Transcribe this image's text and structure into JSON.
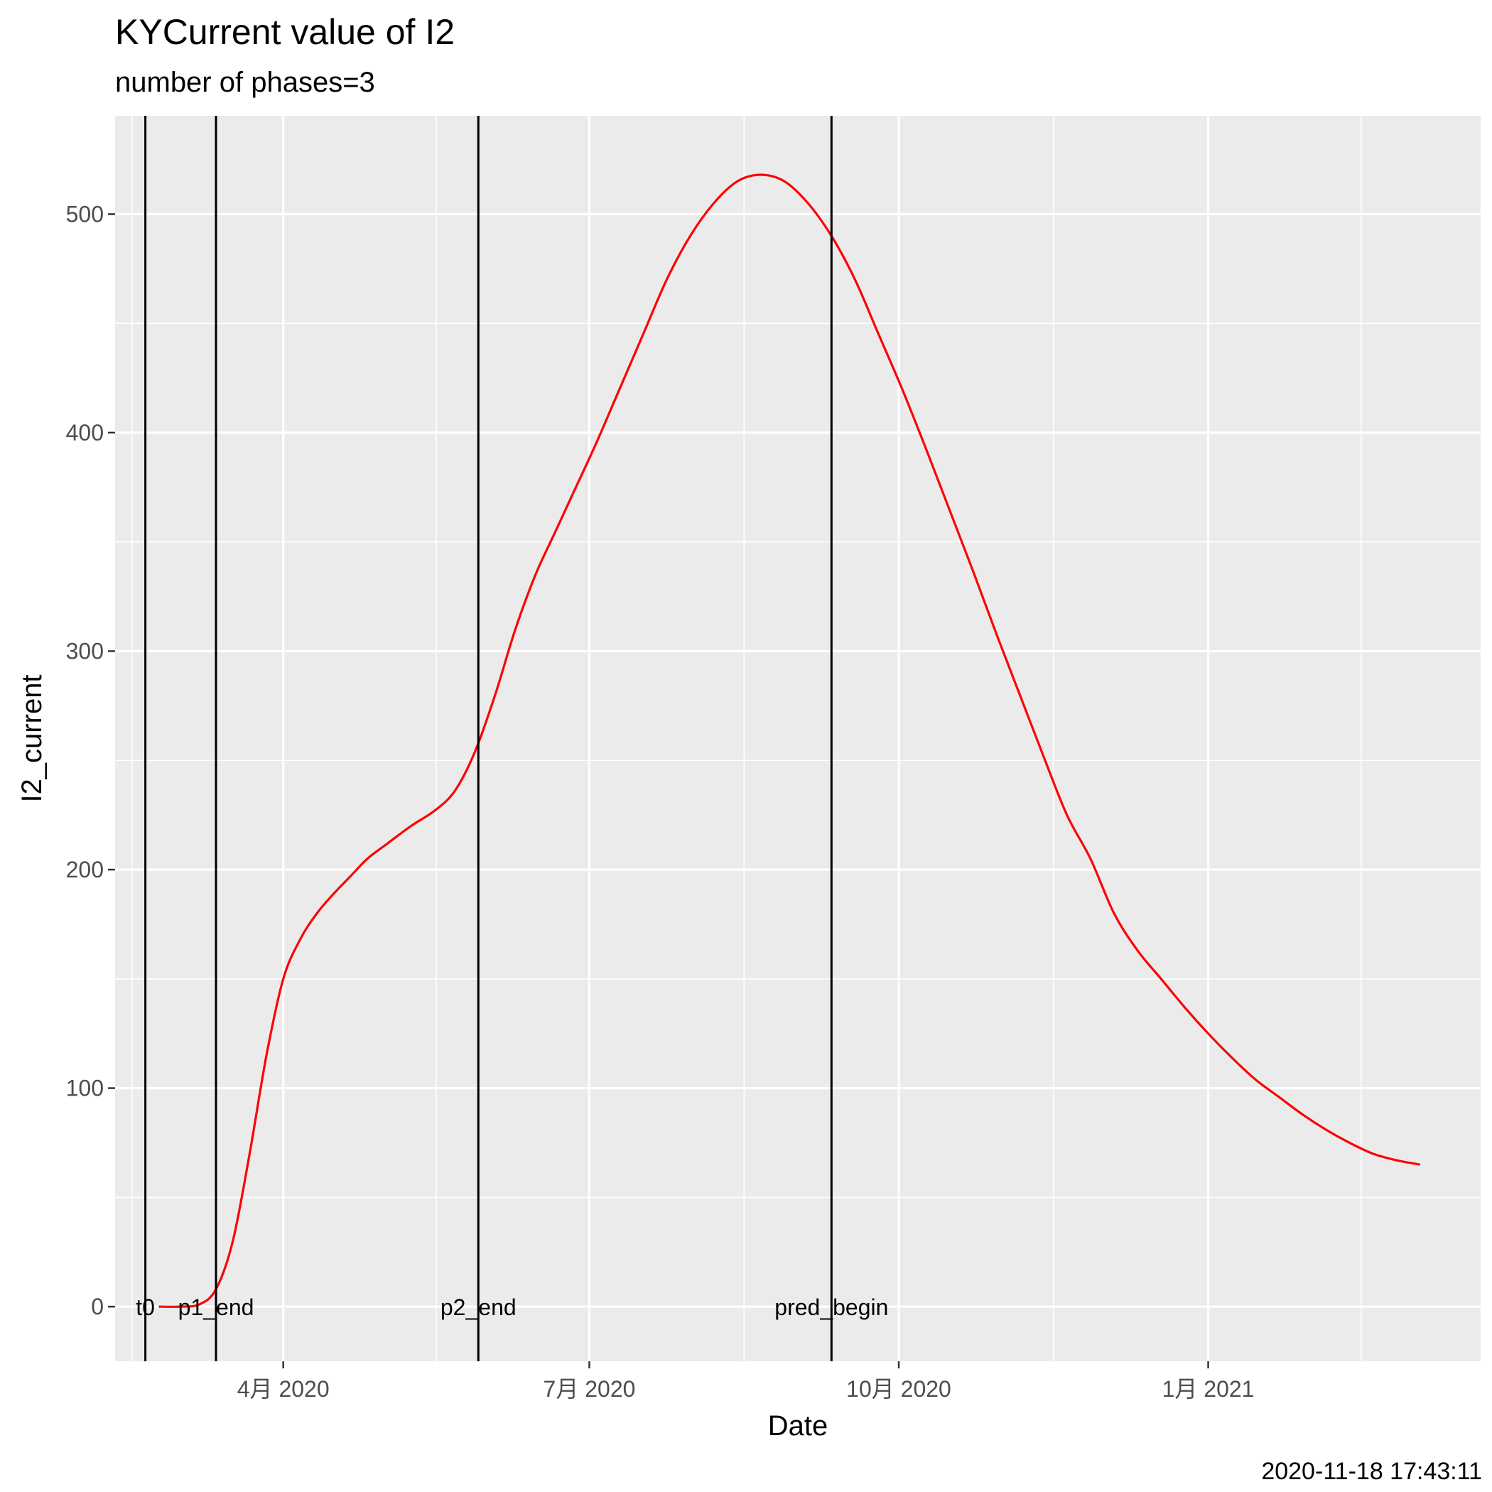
{
  "chart_data": {
    "type": "line",
    "title": "KYCurrent value of I2",
    "subtitle": "number of phases=3",
    "xlabel": "Date",
    "ylabel": "I2_current",
    "caption": "2020-11-18 17:43:11",
    "x_range": [
      "2020-02-11",
      "2021-03-23"
    ],
    "ylim": [
      -25,
      545
    ],
    "y_ticks": [
      0,
      100,
      200,
      300,
      400,
      500
    ],
    "x_ticks": [
      {
        "date": "2020-04-01",
        "label": "4月 2020"
      },
      {
        "date": "2020-07-01",
        "label": "7月 2020"
      },
      {
        "date": "2020-10-01",
        "label": "10月 2020"
      },
      {
        "date": "2021-01-01",
        "label": "1月 2021"
      }
    ],
    "grid": true,
    "legend": "none",
    "line_color": "#ff0000",
    "vlines": [
      {
        "date": "2020-02-20",
        "label": "t0"
      },
      {
        "date": "2020-03-12",
        "label": "p1_end"
      },
      {
        "date": "2020-05-29",
        "label": "p2_end"
      },
      {
        "date": "2020-09-11",
        "label": "pred_begin"
      }
    ],
    "series": [
      {
        "x": [
          "2020-02-24",
          "2020-03-01",
          "2020-03-07",
          "2020-03-12",
          "2020-03-17",
          "2020-03-22",
          "2020-03-27",
          "2020-04-01",
          "2020-04-06",
          "2020-04-11",
          "2020-04-16",
          "2020-04-21",
          "2020-04-26",
          "2020-05-02",
          "2020-05-09",
          "2020-05-16",
          "2020-05-22",
          "2020-05-28",
          "2020-06-03",
          "2020-06-09",
          "2020-06-15",
          "2020-06-21",
          "2020-06-27",
          "2020-07-03",
          "2020-07-10",
          "2020-07-17",
          "2020-07-24",
          "2020-07-31",
          "2020-08-07",
          "2020-08-14",
          "2020-08-21",
          "2020-08-28",
          "2020-09-04",
          "2020-09-11",
          "2020-09-18",
          "2020-09-25",
          "2020-10-02",
          "2020-10-09",
          "2020-10-16",
          "2020-10-23",
          "2020-10-30",
          "2020-11-06",
          "2020-11-13",
          "2020-11-20",
          "2020-11-27",
          "2020-12-04",
          "2020-12-11",
          "2020-12-18",
          "2020-12-25",
          "2021-01-01",
          "2021-01-08",
          "2021-01-15",
          "2021-01-22",
          "2021-01-29",
          "2021-02-05",
          "2021-02-12",
          "2021-02-19",
          "2021-02-26",
          "2021-03-05"
        ],
        "y": [
          0,
          0,
          1,
          8,
          30,
          70,
          115,
          150,
          168,
          180,
          189,
          197,
          205,
          212,
          220,
          227,
          236,
          254,
          280,
          310,
          335,
          355,
          375,
          395,
          420,
          445,
          470,
          490,
          505,
          515,
          518,
          515,
          505,
          490,
          470,
          445,
          420,
          393,
          365,
          337,
          308,
          280,
          252,
          225,
          205,
          180,
          163,
          150,
          137,
          125,
          114,
          104,
          96,
          88,
          81,
          75,
          70,
          67,
          65
        ]
      }
    ]
  }
}
